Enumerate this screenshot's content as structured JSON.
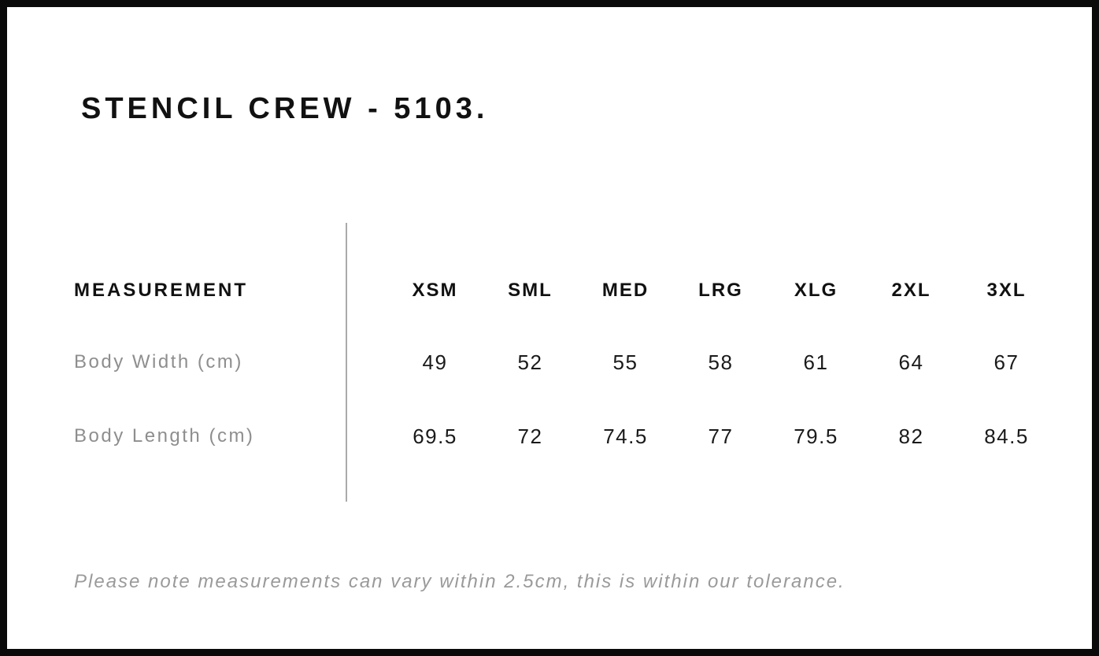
{
  "page": {
    "title": "STENCIL CREW - 5103.",
    "footer_note": "Please note measurements can vary within 2.5cm, this is within our tolerance."
  },
  "size_chart": {
    "measurement_header": "MEASUREMENT",
    "sizes": [
      "XSM",
      "SML",
      "MED",
      "LRG",
      "XLG",
      "2XL",
      "3XL"
    ],
    "rows": [
      {
        "label": "Body Width (cm)",
        "values": [
          "49",
          "52",
          "55",
          "58",
          "61",
          "64",
          "67"
        ]
      },
      {
        "label": "Body Length (cm)",
        "values": [
          "69.5",
          "72",
          "74.5",
          "77",
          "79.5",
          "82",
          "84.5"
        ]
      }
    ]
  },
  "chart_data": {
    "type": "table",
    "title": "STENCIL CREW - 5103.",
    "columns": [
      "MEASUREMENT",
      "XSM",
      "SML",
      "MED",
      "LRG",
      "XLG",
      "2XL",
      "3XL"
    ],
    "rows": [
      [
        "Body Width (cm)",
        49,
        52,
        55,
        58,
        61,
        64,
        67
      ],
      [
        "Body Length (cm)",
        69.5,
        72,
        74.5,
        77,
        79.5,
        82,
        84.5
      ]
    ],
    "note": "Please note measurements can vary within 2.5cm, this is within our tolerance."
  },
  "colors": {
    "frame_border": "#0a0a0a",
    "heading_text": "#111111",
    "value_text": "#1a1a1a",
    "muted_label_text": "#8e8e8e",
    "footer_text": "#9a9a9a",
    "divider": "#aaaaaa",
    "background": "#ffffff"
  }
}
